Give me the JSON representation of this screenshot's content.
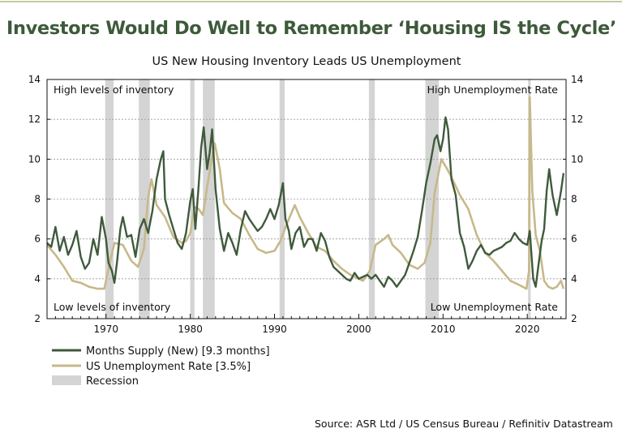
{
  "headline": "Investors Would Do Well to Remember ‘Housing IS the Cycle’",
  "source": "Source: ASR Ltd / US Census Bureau / Refinitiv Datastream",
  "colors": {
    "months_supply": "#3f5a3c",
    "unemployment": "#c7b98a",
    "recession": "#d4d4d4",
    "headline": "#3d5a3a",
    "top_rule": "#c8c9a4"
  },
  "chart_data": {
    "type": "line",
    "title": "US New Housing Inventory Leads US Unemployment",
    "xlim": [
      1963,
      2024.6
    ],
    "ylim": [
      2,
      14
    ],
    "yticks": [
      2,
      4,
      6,
      8,
      10,
      12,
      14
    ],
    "xticks": [
      1970,
      1980,
      1990,
      2000,
      2010,
      2020
    ],
    "grid": "horizontal-dashed",
    "legend_position": "bottom-left",
    "annotations": {
      "top_left": "High levels of inventory",
      "top_right": "High Unemployment Rate",
      "bottom_left": "Low levels of inventory",
      "bottom_right": "Low Unemployment Rate"
    },
    "recession_label": "Recession",
    "recessions": [
      [
        1969.9,
        1970.9
      ],
      [
        1973.9,
        1975.2
      ],
      [
        1980.0,
        1980.5
      ],
      [
        1981.5,
        1982.9
      ],
      [
        1990.6,
        1991.2
      ],
      [
        2001.2,
        2001.9
      ],
      [
        2007.9,
        2009.5
      ],
      [
        2020.1,
        2020.4
      ]
    ],
    "series": [
      {
        "name": "Months Supply (New) [9.3 months]",
        "points": [
          [
            1963.0,
            5.8
          ],
          [
            1963.5,
            5.6
          ],
          [
            1964.0,
            6.6
          ],
          [
            1964.5,
            5.4
          ],
          [
            1965.0,
            6.1
          ],
          [
            1965.5,
            5.2
          ],
          [
            1966.0,
            5.7
          ],
          [
            1966.5,
            6.4
          ],
          [
            1967.0,
            5.1
          ],
          [
            1967.5,
            4.5
          ],
          [
            1968.0,
            4.8
          ],
          [
            1968.5,
            6.0
          ],
          [
            1969.0,
            5.2
          ],
          [
            1969.5,
            7.1
          ],
          [
            1970.0,
            6.0
          ],
          [
            1970.3,
            4.8
          ],
          [
            1970.7,
            4.4
          ],
          [
            1971.0,
            3.8
          ],
          [
            1971.3,
            4.8
          ],
          [
            1971.7,
            6.5
          ],
          [
            1972.0,
            7.1
          ],
          [
            1972.5,
            6.1
          ],
          [
            1973.0,
            6.2
          ],
          [
            1973.5,
            5.1
          ],
          [
            1974.0,
            6.5
          ],
          [
            1974.5,
            7.0
          ],
          [
            1975.0,
            6.3
          ],
          [
            1975.5,
            7.4
          ],
          [
            1976.0,
            9.0
          ],
          [
            1976.5,
            10.0
          ],
          [
            1976.8,
            10.4
          ],
          [
            1977.0,
            8.0
          ],
          [
            1977.5,
            7.2
          ],
          [
            1978.0,
            6.5
          ],
          [
            1978.5,
            5.8
          ],
          [
            1979.0,
            5.5
          ],
          [
            1979.5,
            6.3
          ],
          [
            1980.0,
            7.9
          ],
          [
            1980.3,
            8.5
          ],
          [
            1980.6,
            6.5
          ],
          [
            1981.0,
            8.7
          ],
          [
            1981.3,
            10.6
          ],
          [
            1981.6,
            11.6
          ],
          [
            1982.0,
            9.5
          ],
          [
            1982.3,
            10.3
          ],
          [
            1982.6,
            11.5
          ],
          [
            1983.0,
            8.5
          ],
          [
            1983.5,
            6.5
          ],
          [
            1984.0,
            5.4
          ],
          [
            1984.5,
            6.3
          ],
          [
            1985.0,
            5.8
          ],
          [
            1985.5,
            5.2
          ],
          [
            1986.0,
            6.5
          ],
          [
            1986.5,
            7.4
          ],
          [
            1987.0,
            7.0
          ],
          [
            1987.5,
            6.7
          ],
          [
            1988.0,
            6.4
          ],
          [
            1988.5,
            6.6
          ],
          [
            1989.0,
            7.0
          ],
          [
            1989.5,
            7.5
          ],
          [
            1990.0,
            7.0
          ],
          [
            1990.5,
            7.7
          ],
          [
            1991.0,
            8.8
          ],
          [
            1991.3,
            7.0
          ],
          [
            1991.7,
            6.4
          ],
          [
            1992.0,
            5.5
          ],
          [
            1992.5,
            6.3
          ],
          [
            1993.0,
            6.6
          ],
          [
            1993.5,
            5.6
          ],
          [
            1994.0,
            6.0
          ],
          [
            1994.5,
            6.0
          ],
          [
            1995.0,
            5.4
          ],
          [
            1995.5,
            6.3
          ],
          [
            1996.0,
            5.9
          ],
          [
            1996.5,
            5.1
          ],
          [
            1997.0,
            4.6
          ],
          [
            1997.5,
            4.4
          ],
          [
            1998.0,
            4.2
          ],
          [
            1998.5,
            4.0
          ],
          [
            1999.0,
            3.9
          ],
          [
            1999.5,
            4.3
          ],
          [
            2000.0,
            4.0
          ],
          [
            2000.5,
            4.1
          ],
          [
            2001.0,
            4.2
          ],
          [
            2001.5,
            4.0
          ],
          [
            2002.0,
            4.2
          ],
          [
            2002.5,
            3.9
          ],
          [
            2003.0,
            3.6
          ],
          [
            2003.5,
            4.1
          ],
          [
            2004.0,
            3.9
          ],
          [
            2004.5,
            3.6
          ],
          [
            2005.0,
            3.9
          ],
          [
            2005.5,
            4.2
          ],
          [
            2006.0,
            4.8
          ],
          [
            2006.5,
            5.4
          ],
          [
            2007.0,
            6.1
          ],
          [
            2007.5,
            7.4
          ],
          [
            2008.0,
            8.8
          ],
          [
            2008.5,
            9.8
          ],
          [
            2009.0,
            11.0
          ],
          [
            2009.3,
            11.2
          ],
          [
            2009.7,
            10.4
          ],
          [
            2010.0,
            11.0
          ],
          [
            2010.3,
            12.1
          ],
          [
            2010.6,
            11.5
          ],
          [
            2011.0,
            9.0
          ],
          [
            2011.5,
            8.2
          ],
          [
            2012.0,
            6.3
          ],
          [
            2012.5,
            5.6
          ],
          [
            2013.0,
            4.5
          ],
          [
            2013.5,
            4.9
          ],
          [
            2014.0,
            5.4
          ],
          [
            2014.5,
            5.7
          ],
          [
            2015.0,
            5.3
          ],
          [
            2015.5,
            5.2
          ],
          [
            2016.0,
            5.4
          ],
          [
            2016.5,
            5.5
          ],
          [
            2017.0,
            5.6
          ],
          [
            2017.5,
            5.8
          ],
          [
            2018.0,
            5.9
          ],
          [
            2018.5,
            6.3
          ],
          [
            2019.0,
            6.0
          ],
          [
            2019.5,
            5.8
          ],
          [
            2020.0,
            5.7
          ],
          [
            2020.3,
            6.4
          ],
          [
            2020.7,
            4.0
          ],
          [
            2021.0,
            3.6
          ],
          [
            2021.3,
            4.6
          ],
          [
            2021.7,
            5.9
          ],
          [
            2022.0,
            6.5
          ],
          [
            2022.3,
            8.4
          ],
          [
            2022.6,
            9.5
          ],
          [
            2023.0,
            8.2
          ],
          [
            2023.5,
            7.2
          ],
          [
            2024.0,
            8.4
          ],
          [
            2024.3,
            9.3
          ]
        ]
      },
      {
        "name": "US Unemployment Rate [3.5%]",
        "points": [
          [
            1963.0,
            5.7
          ],
          [
            1964.0,
            5.2
          ],
          [
            1965.0,
            4.6
          ],
          [
            1966.0,
            3.9
          ],
          [
            1967.0,
            3.8
          ],
          [
            1968.0,
            3.6
          ],
          [
            1969.0,
            3.5
          ],
          [
            1969.8,
            3.5
          ],
          [
            1970.5,
            4.9
          ],
          [
            1971.0,
            5.8
          ],
          [
            1972.0,
            5.7
          ],
          [
            1973.0,
            4.9
          ],
          [
            1973.8,
            4.6
          ],
          [
            1974.5,
            5.5
          ],
          [
            1975.0,
            8.1
          ],
          [
            1975.4,
            9.0
          ],
          [
            1976.0,
            7.7
          ],
          [
            1977.0,
            7.1
          ],
          [
            1978.0,
            6.1
          ],
          [
            1979.0,
            5.8
          ],
          [
            1979.5,
            5.9
          ],
          [
            1980.0,
            6.3
          ],
          [
            1980.5,
            7.6
          ],
          [
            1981.0,
            7.5
          ],
          [
            1981.5,
            7.2
          ],
          [
            1982.0,
            8.6
          ],
          [
            1982.5,
            9.9
          ],
          [
            1982.9,
            10.8
          ],
          [
            1983.5,
            9.5
          ],
          [
            1984.0,
            7.8
          ],
          [
            1985.0,
            7.3
          ],
          [
            1986.0,
            7.0
          ],
          [
            1987.0,
            6.2
          ],
          [
            1988.0,
            5.5
          ],
          [
            1989.0,
            5.3
          ],
          [
            1990.0,
            5.4
          ],
          [
            1990.7,
            5.9
          ],
          [
            1991.5,
            6.8
          ],
          [
            1992.4,
            7.7
          ],
          [
            1993.0,
            7.1
          ],
          [
            1994.0,
            6.3
          ],
          [
            1995.0,
            5.6
          ],
          [
            1996.0,
            5.4
          ],
          [
            1997.0,
            4.9
          ],
          [
            1998.0,
            4.5
          ],
          [
            1999.0,
            4.2
          ],
          [
            2000.0,
            4.0
          ],
          [
            2000.5,
            3.9
          ],
          [
            2001.3,
            4.4
          ],
          [
            2002.0,
            5.7
          ],
          [
            2003.0,
            6.0
          ],
          [
            2003.5,
            6.2
          ],
          [
            2004.0,
            5.7
          ],
          [
            2005.0,
            5.3
          ],
          [
            2006.0,
            4.7
          ],
          [
            2007.0,
            4.5
          ],
          [
            2007.8,
            4.8
          ],
          [
            2008.5,
            5.8
          ],
          [
            2009.0,
            8.3
          ],
          [
            2009.8,
            10.0
          ],
          [
            2010.5,
            9.5
          ],
          [
            2011.0,
            9.1
          ],
          [
            2012.0,
            8.2
          ],
          [
            2013.0,
            7.5
          ],
          [
            2014.0,
            6.2
          ],
          [
            2015.0,
            5.3
          ],
          [
            2016.0,
            4.9
          ],
          [
            2017.0,
            4.4
          ],
          [
            2018.0,
            3.9
          ],
          [
            2019.0,
            3.7
          ],
          [
            2019.9,
            3.5
          ],
          [
            2020.2,
            4.4
          ],
          [
            2020.3,
            13.1
          ],
          [
            2020.6,
            8.4
          ],
          [
            2021.0,
            6.2
          ],
          [
            2021.5,
            5.4
          ],
          [
            2022.0,
            3.9
          ],
          [
            2022.5,
            3.6
          ],
          [
            2023.0,
            3.5
          ],
          [
            2023.5,
            3.6
          ],
          [
            2024.0,
            3.9
          ],
          [
            2024.3,
            3.5
          ]
        ]
      },
      {
        "name": "Recession"
      }
    ]
  }
}
